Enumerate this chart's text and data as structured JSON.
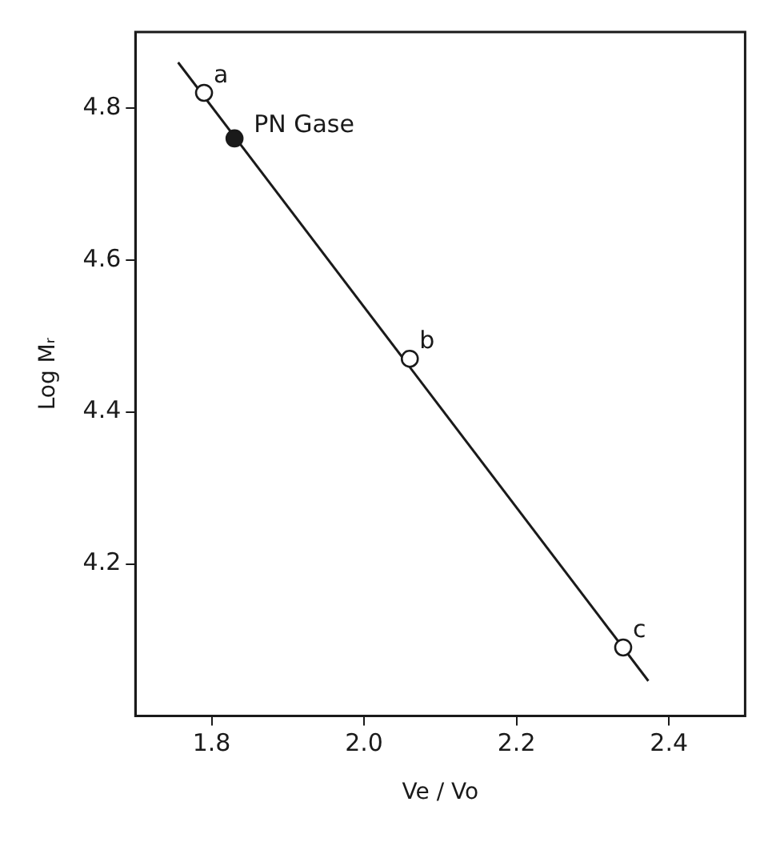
{
  "chart_data": {
    "type": "scatter",
    "xlabel": "Ve / Vo",
    "ylabel": "Log Mᵣ",
    "xlim": [
      1.7,
      2.5
    ],
    "xticks": [
      1.8,
      {
        "value": 2.0,
        "label": "2.0"
      },
      2.2,
      2.4
    ],
    "ylim": [
      4.0,
      4.9
    ],
    "yticks": [
      4.2,
      4.4,
      4.6,
      4.8
    ],
    "grid": false,
    "legend": false,
    "marker": "circle",
    "series": [
      {
        "color": "#1a1a1a",
        "x": [
          1.79,
          2.06,
          2.34
        ],
        "values": [
          4.82,
          4.47,
          4.09
        ]
      },
      {
        "name": "PN Gase",
        "color": "#1a1a1a",
        "x": [
          1.83
        ],
        "values": [
          4.76
        ]
      },
      {
        "type": "line",
        "color": "#1a1a1a",
        "marker": "none",
        "x": [
          1.756,
          2.373
        ],
        "values": [
          4.86,
          4.046
        ]
      }
    ],
    "annotations": [
      {
        "text": "a",
        "x": 1.79,
        "y": 4.82
      },
      {
        "text": "b",
        "x": 2.06,
        "y": 4.47
      },
      {
        "text": "c",
        "x": 2.34,
        "y": 4.09
      }
    ]
  }
}
